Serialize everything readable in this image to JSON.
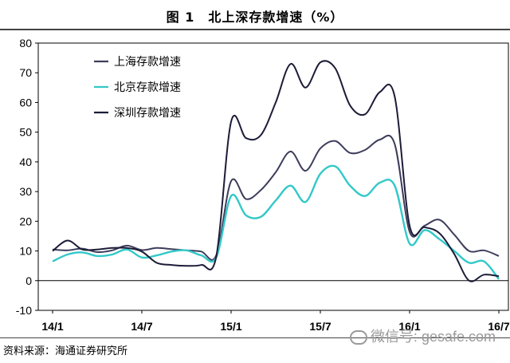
{
  "header": {
    "title": "图 1　北上深存款增速（%）"
  },
  "footer": {
    "source": "资料来源：海通证券研究所"
  },
  "watermark": {
    "text": "微信号: gesafe.com"
  },
  "chart_data": {
    "type": "line",
    "title": "北上深存款增速（%）",
    "xlabel": "",
    "ylabel": "",
    "ylim": [
      -10,
      80
    ],
    "yticks": [
      "80",
      "70",
      "60",
      "50",
      "40",
      "30",
      "20",
      "10",
      "0",
      "-10"
    ],
    "xtick_labels": [
      "14/1",
      "14/7",
      "15/1",
      "15/7",
      "16/1",
      "16/7"
    ],
    "x_months": [
      "14/1",
      "14/2",
      "14/3",
      "14/4",
      "14/5",
      "14/6",
      "14/7",
      "14/8",
      "14/9",
      "14/10",
      "14/11",
      "14/12",
      "15/1",
      "15/2",
      "15/3",
      "15/4",
      "15/5",
      "15/6",
      "15/7",
      "15/8",
      "15/9",
      "15/10",
      "15/11",
      "15/12",
      "16/1",
      "16/2",
      "16/3",
      "16/4",
      "16/5",
      "16/6",
      "16/7"
    ],
    "grid": false,
    "legend_position": "top-left",
    "series": [
      {
        "name": "上海存款增速",
        "color": "#3d3d5c",
        "values": [
          10.5,
          10.2,
          10.8,
          9.6,
          10.2,
          11.8,
          10.3,
          11.0,
          10.6,
          10.2,
          9.8,
          8.5,
          33.5,
          27.5,
          30.5,
          36.5,
          43.5,
          37.0,
          44.5,
          47.0,
          43.0,
          44.0,
          47.5,
          46.0,
          16.5,
          18.5,
          20.5,
          15.5,
          10.0,
          10.2,
          8.3
        ]
      },
      {
        "name": "北京存款增速",
        "color": "#33c8c8",
        "values": [
          6.5,
          8.8,
          9.5,
          8.3,
          8.8,
          10.5,
          7.8,
          8.5,
          9.8,
          10.2,
          8.5,
          7.8,
          28.5,
          22.0,
          21.5,
          27.0,
          32.0,
          26.5,
          36.0,
          38.5,
          32.0,
          28.5,
          33.0,
          32.0,
          12.5,
          17.0,
          14.0,
          10.0,
          6.0,
          6.5,
          0.5
        ]
      },
      {
        "name": "深圳存款增速",
        "color": "#1c1c38",
        "values": [
          10.0,
          13.5,
          10.5,
          10.5,
          11.0,
          11.0,
          9.8,
          6.0,
          5.3,
          5.0,
          5.3,
          8.0,
          53.5,
          48.0,
          49.0,
          60.0,
          73.0,
          65.0,
          73.5,
          71.5,
          59.0,
          56.0,
          63.5,
          62.0,
          18.5,
          18.0,
          16.0,
          9.0,
          0.0,
          2.0,
          1.5
        ]
      }
    ]
  }
}
